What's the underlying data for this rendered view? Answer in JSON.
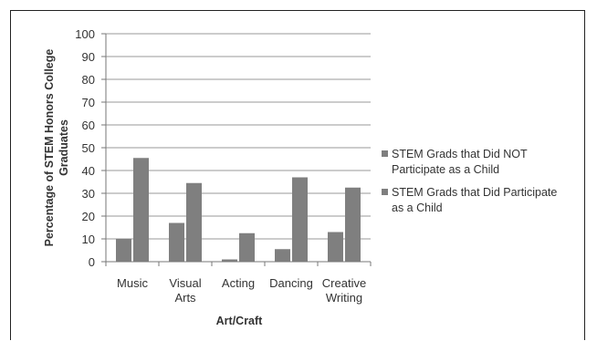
{
  "chart_data": {
    "type": "bar",
    "title": "",
    "xlabel": "Art/Craft",
    "ylabel": "Percentage of STEM Honors College Graduates",
    "ylim": [
      0,
      100
    ],
    "yticks": [
      0,
      10,
      20,
      30,
      40,
      50,
      60,
      70,
      80,
      90,
      100
    ],
    "grid": true,
    "legend_position": "right",
    "categories": [
      [
        "Music"
      ],
      [
        "Visual",
        "Arts"
      ],
      [
        "Acting"
      ],
      [
        "Dancing"
      ],
      [
        "Creative",
        "Writing"
      ]
    ],
    "series": [
      {
        "name": "STEM Grads that Did NOT Participate as a Child",
        "legend_lines": [
          "STEM Grads that Did NOT",
          "Participate as a Child"
        ],
        "color": "#7f7f7f",
        "values": [
          10,
          17,
          1,
          5.5,
          13
        ]
      },
      {
        "name": "STEM Grads that Did Participate as a Child",
        "legend_lines": [
          "STEM Grads that Did Participate",
          "as a Child"
        ],
        "color": "#7f7f7f",
        "values": [
          45.5,
          34.5,
          12.5,
          37,
          32.5
        ]
      }
    ]
  }
}
